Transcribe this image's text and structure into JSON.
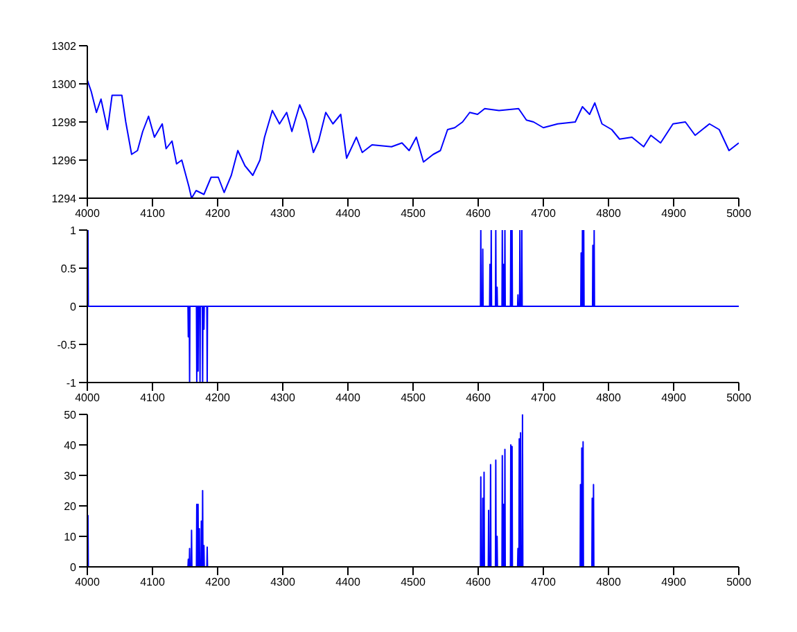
{
  "chart_data": [
    {
      "type": "line",
      "xlim": [
        4000,
        5000
      ],
      "xticks": [
        4000,
        4100,
        4200,
        4300,
        4400,
        4500,
        4600,
        4700,
        4800,
        4900,
        5000
      ],
      "ylim": [
        1294,
        1302
      ],
      "yticks": [
        1294,
        1296,
        1298,
        1300,
        1302
      ],
      "grid": false,
      "legend": false,
      "marker": "none",
      "line_style": "solid",
      "x": [
        4000,
        4006,
        4014,
        4021,
        4031,
        4038,
        4053,
        4059,
        4068,
        4077,
        4085,
        4094,
        4103,
        4115,
        4121,
        4130,
        4137,
        4145,
        4156,
        4160,
        4167,
        4179,
        4190,
        4201,
        4210,
        4221,
        4231,
        4242,
        4254,
        4265,
        4272,
        4284,
        4295,
        4306,
        4314,
        4326,
        4336,
        4347,
        4355,
        4366,
        4377,
        4389,
        4398,
        4413,
        4422,
        4437,
        4467,
        4483,
        4494,
        4505,
        4516,
        4531,
        4542,
        4553,
        4564,
        4576,
        4587,
        4599,
        4610,
        4632,
        4662,
        4674,
        4685,
        4700,
        4722,
        4749,
        4760,
        4771,
        4779,
        4790,
        4805,
        4817,
        4836,
        4854,
        4865,
        4880,
        4899,
        4918,
        4933,
        4955,
        4970,
        4985,
        5000
      ],
      "series": [
        {
          "color": "#0000ff",
          "values": [
            1300.2,
            1299.6,
            1298.5,
            1299.2,
            1297.6,
            1299.4,
            1299.4,
            1298.0,
            1296.3,
            1296.5,
            1297.5,
            1298.3,
            1297.2,
            1297.9,
            1296.6,
            1297.0,
            1295.8,
            1296.0,
            1294.6,
            1294.0,
            1294.4,
            1294.2,
            1295.1,
            1295.1,
            1294.3,
            1295.2,
            1296.5,
            1295.7,
            1295.2,
            1296.0,
            1297.2,
            1298.6,
            1297.9,
            1298.5,
            1297.5,
            1298.9,
            1298.1,
            1296.4,
            1297.0,
            1298.5,
            1297.9,
            1298.4,
            1296.1,
            1297.2,
            1296.4,
            1296.8,
            1296.7,
            1296.9,
            1296.5,
            1297.2,
            1295.9,
            1296.3,
            1296.5,
            1297.6,
            1297.7,
            1298.0,
            1298.5,
            1298.4,
            1298.7,
            1298.6,
            1298.7,
            1298.1,
            1298.0,
            1297.7,
            1297.9,
            1298.0,
            1298.8,
            1298.4,
            1299.0,
            1297.9,
            1297.6,
            1297.1,
            1297.2,
            1296.7,
            1297.3,
            1296.9,
            1297.9,
            1298.0,
            1297.3,
            1297.9,
            1297.6,
            1296.5,
            1296.9
          ]
        }
      ]
    },
    {
      "type": "line",
      "xlim": [
        4000,
        5000
      ],
      "xticks": [
        4000,
        4100,
        4200,
        4300,
        4400,
        4500,
        4600,
        4700,
        4800,
        4900,
        5000
      ],
      "ylim": [
        -1,
        1
      ],
      "yticks": [
        -1,
        -0.5,
        0,
        0.5,
        1
      ],
      "grid": false,
      "legend": false,
      "marker": "none",
      "line_style": "solid",
      "x": [
        4001,
        4001.5,
        4154.5,
        4155,
        4155.5,
        4156.5,
        4157,
        4157.5,
        4167.5,
        4168,
        4168.5,
        4169.5,
        4170,
        4170.5,
        4172.5,
        4173,
        4173.5,
        4176.5,
        4177,
        4177.5,
        4178.5,
        4179,
        4179.5,
        4183.5,
        4184,
        4184.5,
        4603.5,
        4604,
        4604.5,
        4606.5,
        4607,
        4607.5,
        4617.5,
        4618,
        4618.5,
        4619.5,
        4620,
        4620.5,
        4626.5,
        4627,
        4627.5,
        4628.5,
        4629,
        4629.5,
        4636.5,
        4637,
        4637.5,
        4638.5,
        4639,
        4639.5,
        4640.5,
        4641,
        4641.5,
        4649.5,
        4650,
        4650.5,
        4651.5,
        4652,
        4652.5,
        4660.5,
        4661,
        4661.5,
        4663.5,
        4664,
        4664.5,
        4666.5,
        4667,
        4667.5,
        4757.5,
        4758,
        4758.5,
        4759.5,
        4760,
        4760.5,
        4761.5,
        4762,
        4762.5,
        4775.5,
        4776,
        4776.5,
        4777.5,
        4778,
        4778.5,
        5000
      ],
      "series": [
        {
          "color": "#0000ff",
          "values": [
            1,
            0,
            0,
            -0.4,
            0,
            0,
            -1,
            0,
            0,
            -1,
            0,
            0,
            -0.85,
            0,
            0,
            -1,
            0,
            0,
            -1,
            0,
            0,
            -0.3,
            0,
            0,
            -1,
            0,
            0,
            1,
            0,
            0,
            0.75,
            0,
            0,
            0.55,
            0,
            0,
            1,
            0,
            0,
            1,
            0,
            0,
            0.25,
            0,
            0,
            1,
            0,
            0,
            0.55,
            0,
            0,
            1,
            0,
            0,
            1,
            0,
            0,
            1,
            0,
            0,
            0.15,
            0,
            0,
            1,
            0,
            0,
            1,
            0,
            0,
            0.7,
            0,
            0,
            1,
            0,
            0,
            1,
            0,
            0,
            0.8,
            0,
            0,
            1,
            0,
            0
          ]
        }
      ]
    },
    {
      "type": "line",
      "xlim": [
        4000,
        5000
      ],
      "xticks": [
        4000,
        4100,
        4200,
        4300,
        4400,
        4500,
        4600,
        4700,
        4800,
        4900,
        5000
      ],
      "ylim": [
        0,
        50
      ],
      "yticks": [
        0,
        10,
        20,
        30,
        40,
        50
      ],
      "grid": false,
      "legend": false,
      "marker": "none",
      "line_style": "solid",
      "x": [
        4001,
        4001.5,
        4154.5,
        4155,
        4155.5,
        4156.5,
        4157,
        4157.5,
        4159.5,
        4160,
        4160.5,
        4167.5,
        4168,
        4168.5,
        4169.5,
        4170,
        4170.5,
        4171.5,
        4172,
        4172.5,
        4174.5,
        4175,
        4175.5,
        4176.5,
        4177,
        4177.5,
        4178.5,
        4179,
        4179.5,
        4183.5,
        4184,
        4184.5,
        4603.5,
        4604,
        4604.5,
        4606.5,
        4607,
        4607.5,
        4608.5,
        4609,
        4609.5,
        4615.5,
        4616,
        4616.5,
        4618.5,
        4619,
        4619.5,
        4626.5,
        4627,
        4627.5,
        4628.5,
        4629,
        4629.5,
        4636.5,
        4637,
        4637.5,
        4638.5,
        4639,
        4639.5,
        4640.5,
        4641,
        4641.5,
        4649.5,
        4650,
        4650.5,
        4651.5,
        4652,
        4652.5,
        4660.5,
        4661,
        4661.5,
        4662.5,
        4663,
        4663.5,
        4664.5,
        4665,
        4665.5,
        4667.5,
        4668,
        4668.5,
        4756.5,
        4757,
        4757.5,
        4758.5,
        4759,
        4759.5,
        4760.5,
        4761,
        4761.5,
        4774.5,
        4775,
        4775.5,
        4776.5,
        4777,
        4777.5,
        5000
      ],
      "series": [
        {
          "color": "#0000ff",
          "values": [
            17,
            0,
            0,
            2.5,
            0,
            0,
            6,
            0,
            0,
            12,
            0,
            0,
            20.5,
            0,
            0,
            20.5,
            0,
            0,
            12.5,
            0,
            0,
            15,
            0,
            0,
            25,
            0,
            0,
            7,
            0,
            0,
            6.5,
            0,
            0,
            29.5,
            0,
            0,
            22.5,
            0,
            0,
            31,
            0,
            0,
            18.5,
            0,
            0,
            33.5,
            0,
            0,
            35,
            0,
            0,
            10,
            0,
            0,
            36.5,
            0,
            0,
            20.5,
            0,
            0,
            38.5,
            0,
            0,
            40,
            0,
            0,
            39.5,
            0,
            0,
            6,
            0,
            0,
            42,
            0,
            0,
            44,
            0,
            0,
            50,
            0,
            0,
            27,
            0,
            0,
            39,
            0,
            0,
            41,
            0,
            0,
            22.5,
            0,
            0,
            27,
            0,
            0
          ]
        }
      ]
    }
  ]
}
